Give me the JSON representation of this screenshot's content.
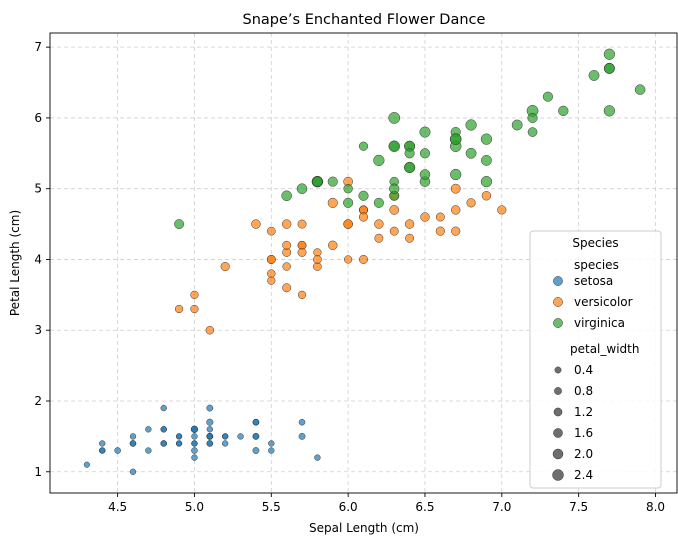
{
  "chart_data": {
    "type": "scatter",
    "title": "Snape’s Enchanted Flower Dance",
    "xlabel": "Sepal Length (cm)",
    "ylabel": "Petal Length (cm)",
    "xlim": [
      4.06,
      8.14
    ],
    "ylim": [
      0.7,
      7.2
    ],
    "xticks": [
      "4.5",
      "5.0",
      "5.5",
      "6.0",
      "6.5",
      "7.0",
      "7.5",
      "8.0"
    ],
    "yticks": [
      "1",
      "2",
      "3",
      "4",
      "5",
      "6",
      "7"
    ],
    "grid": true,
    "legend": {
      "title": "Species",
      "placement": "lower-right",
      "hue_title": "species",
      "size_title": "petal_width",
      "size_entries": [
        "0.4",
        "0.8",
        "1.2",
        "1.6",
        "2.0",
        "2.4"
      ],
      "size_values": [
        0.4,
        0.8,
        1.2,
        1.6,
        2.0,
        2.4
      ]
    },
    "size_range": {
      "min_width": 0.1,
      "max_width": 2.5
    },
    "series": [
      {
        "name": "setosa",
        "color": "#1f77b4",
        "points": [
          [
            5.1,
            1.4,
            0.2
          ],
          [
            4.9,
            1.4,
            0.2
          ],
          [
            4.7,
            1.3,
            0.2
          ],
          [
            4.6,
            1.5,
            0.2
          ],
          [
            5.0,
            1.4,
            0.2
          ],
          [
            5.4,
            1.7,
            0.4
          ],
          [
            4.6,
            1.4,
            0.3
          ],
          [
            5.0,
            1.5,
            0.2
          ],
          [
            4.4,
            1.4,
            0.2
          ],
          [
            4.9,
            1.5,
            0.1
          ],
          [
            5.4,
            1.5,
            0.2
          ],
          [
            4.8,
            1.6,
            0.2
          ],
          [
            4.8,
            1.4,
            0.1
          ],
          [
            4.3,
            1.1,
            0.1
          ],
          [
            5.8,
            1.2,
            0.2
          ],
          [
            5.7,
            1.5,
            0.4
          ],
          [
            5.4,
            1.3,
            0.4
          ],
          [
            5.1,
            1.4,
            0.3
          ],
          [
            5.7,
            1.7,
            0.3
          ],
          [
            5.1,
            1.5,
            0.3
          ],
          [
            5.4,
            1.7,
            0.2
          ],
          [
            5.1,
            1.5,
            0.4
          ],
          [
            4.6,
            1.0,
            0.2
          ],
          [
            5.1,
            1.7,
            0.5
          ],
          [
            4.8,
            1.9,
            0.2
          ],
          [
            5.0,
            1.6,
            0.2
          ],
          [
            5.0,
            1.6,
            0.4
          ],
          [
            5.2,
            1.5,
            0.2
          ],
          [
            5.2,
            1.4,
            0.2
          ],
          [
            4.7,
            1.6,
            0.2
          ],
          [
            4.8,
            1.6,
            0.2
          ],
          [
            5.4,
            1.5,
            0.4
          ],
          [
            5.2,
            1.5,
            0.1
          ],
          [
            5.5,
            1.4,
            0.2
          ],
          [
            4.9,
            1.5,
            0.2
          ],
          [
            5.0,
            1.2,
            0.2
          ],
          [
            5.5,
            1.3,
            0.2
          ],
          [
            4.9,
            1.4,
            0.1
          ],
          [
            4.4,
            1.3,
            0.2
          ],
          [
            5.1,
            1.5,
            0.2
          ],
          [
            5.0,
            1.3,
            0.3
          ],
          [
            4.5,
            1.3,
            0.3
          ],
          [
            4.4,
            1.3,
            0.2
          ],
          [
            5.0,
            1.6,
            0.6
          ],
          [
            5.1,
            1.9,
            0.4
          ],
          [
            4.8,
            1.4,
            0.3
          ],
          [
            5.1,
            1.6,
            0.2
          ],
          [
            4.6,
            1.4,
            0.2
          ],
          [
            5.3,
            1.5,
            0.2
          ],
          [
            5.0,
            1.4,
            0.2
          ]
        ]
      },
      {
        "name": "versicolor",
        "color": "#ff7f0e",
        "points": [
          [
            7.0,
            4.7,
            1.4
          ],
          [
            6.4,
            4.5,
            1.5
          ],
          [
            6.9,
            4.9,
            1.5
          ],
          [
            5.5,
            4.0,
            1.3
          ],
          [
            6.5,
            4.6,
            1.5
          ],
          [
            5.7,
            4.5,
            1.3
          ],
          [
            6.3,
            4.7,
            1.6
          ],
          [
            4.9,
            3.3,
            1.0
          ],
          [
            6.6,
            4.6,
            1.3
          ],
          [
            5.2,
            3.9,
            1.4
          ],
          [
            5.0,
            3.5,
            1.0
          ],
          [
            5.9,
            4.2,
            1.5
          ],
          [
            6.0,
            4.0,
            1.0
          ],
          [
            6.1,
            4.7,
            1.4
          ],
          [
            5.6,
            3.6,
            1.3
          ],
          [
            6.7,
            4.4,
            1.4
          ],
          [
            5.6,
            4.5,
            1.5
          ],
          [
            5.8,
            4.1,
            1.0
          ],
          [
            6.2,
            4.5,
            1.5
          ],
          [
            5.6,
            3.9,
            1.1
          ],
          [
            5.9,
            4.8,
            1.8
          ],
          [
            6.1,
            4.0,
            1.3
          ],
          [
            6.3,
            4.9,
            1.5
          ],
          [
            6.1,
            4.7,
            1.2
          ],
          [
            6.4,
            4.3,
            1.3
          ],
          [
            6.6,
            4.4,
            1.4
          ],
          [
            6.8,
            4.8,
            1.4
          ],
          [
            6.7,
            5.0,
            1.7
          ],
          [
            6.0,
            4.5,
            1.5
          ],
          [
            5.7,
            3.5,
            1.0
          ],
          [
            5.5,
            3.8,
            1.1
          ],
          [
            5.5,
            3.7,
            1.0
          ],
          [
            5.8,
            3.9,
            1.2
          ],
          [
            6.0,
            5.1,
            1.6
          ],
          [
            5.4,
            4.5,
            1.5
          ],
          [
            6.0,
            4.5,
            1.6
          ],
          [
            6.7,
            4.7,
            1.5
          ],
          [
            6.3,
            4.4,
            1.3
          ],
          [
            5.6,
            4.1,
            1.3
          ],
          [
            5.5,
            4.0,
            1.3
          ],
          [
            5.5,
            4.4,
            1.2
          ],
          [
            6.1,
            4.6,
            1.4
          ],
          [
            5.8,
            4.0,
            1.2
          ],
          [
            5.0,
            3.3,
            1.0
          ],
          [
            5.6,
            4.2,
            1.3
          ],
          [
            5.7,
            4.2,
            1.2
          ],
          [
            5.7,
            4.2,
            1.3
          ],
          [
            6.2,
            4.3,
            1.3
          ],
          [
            5.1,
            3.0,
            1.1
          ],
          [
            5.7,
            4.1,
            1.3
          ]
        ]
      },
      {
        "name": "virginica",
        "color": "#2ca02c",
        "points": [
          [
            6.3,
            6.0,
            2.5
          ],
          [
            5.8,
            5.1,
            1.9
          ],
          [
            7.1,
            5.9,
            2.1
          ],
          [
            6.3,
            5.6,
            1.8
          ],
          [
            6.5,
            5.8,
            2.2
          ],
          [
            7.6,
            6.6,
            2.1
          ],
          [
            4.9,
            4.5,
            1.7
          ],
          [
            7.3,
            6.3,
            1.8
          ],
          [
            6.7,
            5.8,
            1.8
          ],
          [
            7.2,
            6.1,
            2.5
          ],
          [
            6.5,
            5.1,
            2.0
          ],
          [
            6.4,
            5.3,
            1.9
          ],
          [
            6.8,
            5.5,
            2.1
          ],
          [
            5.7,
            5.0,
            2.0
          ],
          [
            5.8,
            5.1,
            2.4
          ],
          [
            6.4,
            5.3,
            2.3
          ],
          [
            6.5,
            5.5,
            1.8
          ],
          [
            7.7,
            6.7,
            2.2
          ],
          [
            7.7,
            6.9,
            2.3
          ],
          [
            6.0,
            5.0,
            1.5
          ],
          [
            6.9,
            5.7,
            2.3
          ],
          [
            5.6,
            4.9,
            2.0
          ],
          [
            7.7,
            6.7,
            2.0
          ],
          [
            6.3,
            4.9,
            1.8
          ],
          [
            6.7,
            5.7,
            2.1
          ],
          [
            7.2,
            6.0,
            1.8
          ],
          [
            6.2,
            4.8,
            1.8
          ],
          [
            6.1,
            4.9,
            1.8
          ],
          [
            6.4,
            5.6,
            2.1
          ],
          [
            7.2,
            5.8,
            1.6
          ],
          [
            7.4,
            6.1,
            1.9
          ],
          [
            7.9,
            6.4,
            2.0
          ],
          [
            6.4,
            5.6,
            2.2
          ],
          [
            6.3,
            5.1,
            1.5
          ],
          [
            6.1,
            5.6,
            1.4
          ],
          [
            7.7,
            6.1,
            2.3
          ],
          [
            6.3,
            5.6,
            2.4
          ],
          [
            6.4,
            5.5,
            1.8
          ],
          [
            6.0,
            4.8,
            1.8
          ],
          [
            6.9,
            5.4,
            2.1
          ],
          [
            6.7,
            5.6,
            2.4
          ],
          [
            6.9,
            5.1,
            2.3
          ],
          [
            5.8,
            5.1,
            1.9
          ],
          [
            6.8,
            5.9,
            2.3
          ],
          [
            6.7,
            5.7,
            2.5
          ],
          [
            6.7,
            5.2,
            2.3
          ],
          [
            6.3,
            5.0,
            1.9
          ],
          [
            6.5,
            5.2,
            2.0
          ],
          [
            6.2,
            5.4,
            2.3
          ],
          [
            5.9,
            5.1,
            1.8
          ]
        ]
      }
    ]
  }
}
